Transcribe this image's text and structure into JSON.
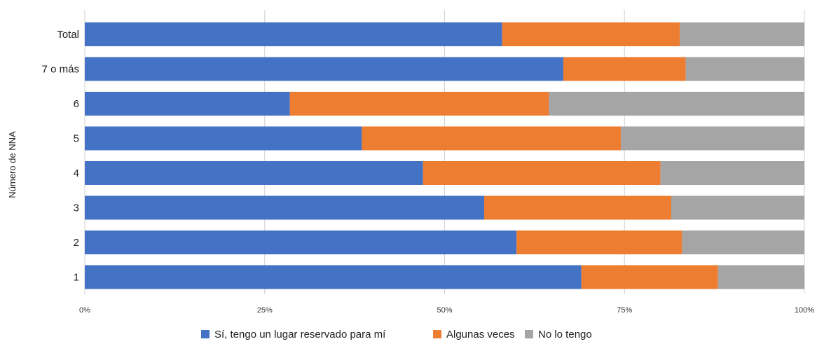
{
  "chart_data": {
    "type": "bar",
    "orientation": "horizontal",
    "stacked": "percent",
    "title": "",
    "ylabel": "Número de NNA",
    "xlabel": "",
    "categories": [
      "Total",
      "7 o más",
      "6",
      "5",
      "4",
      "3",
      "2",
      "1"
    ],
    "xlim": [
      0,
      100
    ],
    "x_ticks": [
      "0%",
      "25%",
      "50%",
      "75%",
      "100%"
    ],
    "series": [
      {
        "name": "Sí, tengo un lugar reservado para mí",
        "color": "#4472c4",
        "values": [
          58,
          66.5,
          28.5,
          38.5,
          47,
          55.5,
          60,
          69
        ]
      },
      {
        "name": "Algunas veces",
        "color": "#ed7d31",
        "values": [
          24.7,
          17,
          36,
          36,
          33,
          26,
          23,
          19
        ]
      },
      {
        "name": "No lo tengo",
        "color": "#a5a5a5",
        "values": [
          17.3,
          16.5,
          35.5,
          25.5,
          20,
          18.5,
          17,
          12
        ]
      }
    ],
    "grid": true,
    "legend_position": "bottom"
  }
}
